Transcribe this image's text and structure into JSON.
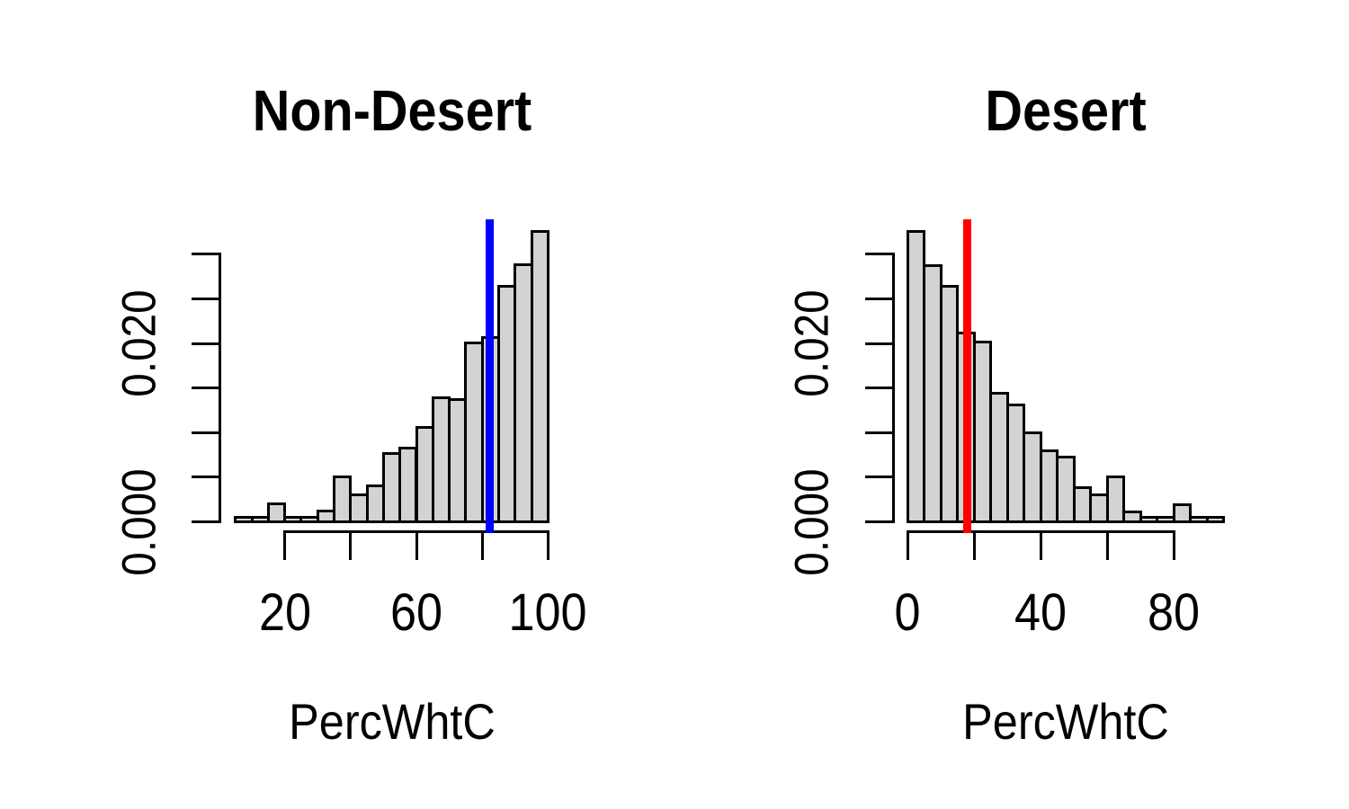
{
  "figure": {
    "background": "#ffffff",
    "text_color": "#000000"
  },
  "chart_data": [
    {
      "type": "bar",
      "subtype": "histogram",
      "title": "Non-Desert",
      "xlabel": "PercWhtC",
      "ylabel": "",
      "bin_start": 5,
      "bin_width": 5,
      "densities": [
        0.0005,
        0.0005,
        0.002,
        0.0005,
        0.0005,
        0.0012,
        0.005,
        0.003,
        0.004,
        0.0077,
        0.0083,
        0.0106,
        0.0139,
        0.0137,
        0.0201,
        0.0207,
        0.0264,
        0.0288,
        0.0326
      ],
      "x_ticks": [
        20,
        40,
        60,
        80,
        100
      ],
      "x_tick_labels": [
        "20",
        "",
        "60",
        "",
        "100"
      ],
      "y_ticks": [
        0.0,
        0.005,
        0.01,
        0.015,
        0.02,
        0.025,
        0.03
      ],
      "y_tick_labels": [
        "0.000",
        "",
        "",
        "",
        "0.020",
        "",
        ""
      ],
      "xlim": [
        5,
        100
      ],
      "ylim": [
        0,
        0.03
      ],
      "grid": false,
      "bar_color": "#d3d3d3",
      "bar_border_color": "#000000",
      "mean_line": {
        "value": 82.3,
        "color": "#0000ff"
      }
    },
    {
      "type": "bar",
      "subtype": "histogram",
      "title": "Desert",
      "xlabel": "PercWhtC",
      "ylabel": "",
      "bin_start": 0,
      "bin_width": 5,
      "densities": [
        0.0326,
        0.0287,
        0.0264,
        0.0212,
        0.0202,
        0.0144,
        0.0131,
        0.01,
        0.008,
        0.0073,
        0.0038,
        0.003,
        0.005,
        0.0011,
        0.0005,
        0.0005,
        0.0019,
        0.0005,
        0.0005
      ],
      "x_ticks": [
        0,
        20,
        40,
        60,
        80
      ],
      "x_tick_labels": [
        "0",
        "",
        "40",
        "",
        "80"
      ],
      "y_ticks": [
        0.0,
        0.005,
        0.01,
        0.015,
        0.02,
        0.025,
        0.03
      ],
      "y_tick_labels": [
        "0.000",
        "",
        "",
        "",
        "0.020",
        "",
        ""
      ],
      "xlim": [
        0,
        95
      ],
      "ylim": [
        0,
        0.03
      ],
      "grid": false,
      "bar_color": "#d3d3d3",
      "bar_border_color": "#000000",
      "mean_line": {
        "value": 18.0,
        "color": "#ff0000"
      }
    }
  ]
}
